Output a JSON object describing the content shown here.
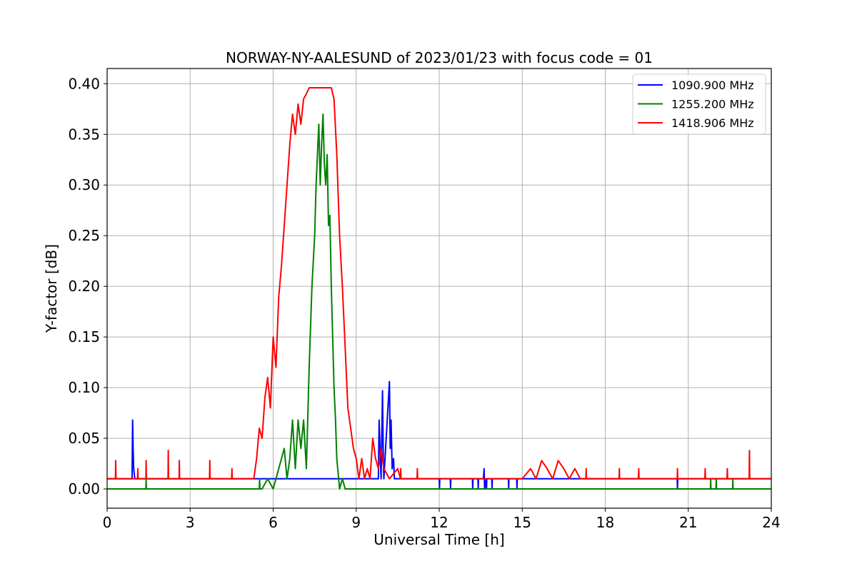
{
  "chart_data": {
    "type": "line",
    "title": "NORWAY-NY-AALESUND of 2023/01/23 with focus code = 01",
    "xlabel": "Universal Time [h]",
    "ylabel": "Y-factor [dB]",
    "xlim": [
      0,
      24
    ],
    "ylim": [
      -0.019,
      0.415
    ],
    "xticks": [
      0,
      3,
      6,
      9,
      12,
      15,
      18,
      21,
      24
    ],
    "xtick_labels": [
      "0",
      "3",
      "6",
      "9",
      "12",
      "15",
      "18",
      "21",
      "24"
    ],
    "yticks": [
      0.0,
      0.05,
      0.1,
      0.15,
      0.2,
      0.25,
      0.3,
      0.35,
      0.4
    ],
    "ytick_labels": [
      "0.00",
      "0.05",
      "0.10",
      "0.15",
      "0.20",
      "0.25",
      "0.30",
      "0.35",
      "0.40"
    ],
    "grid": true,
    "legend_position": "top-right",
    "series": [
      {
        "name": "1090.900 MHz",
        "color": "#0000ff",
        "x": [
          0.0,
          0.9,
          0.92,
          0.94,
          0.96,
          1.0,
          5.0,
          9.8,
          9.83,
          9.86,
          9.9,
          9.95,
          9.98,
          10.0,
          10.2,
          10.23,
          10.26,
          10.3,
          10.35,
          10.38,
          10.4,
          12.0,
          12.01,
          12.02,
          12.4,
          12.41,
          12.42,
          13.2,
          13.21,
          13.22,
          13.4,
          13.41,
          13.42,
          13.6,
          13.62,
          13.64,
          13.7,
          13.71,
          13.72,
          13.9,
          13.91,
          13.92,
          14.5,
          14.51,
          14.52,
          14.8,
          14.81,
          14.82,
          20.6,
          20.61,
          20.62,
          24.0
        ],
        "y": [
          0.01,
          0.01,
          0.068,
          0.04,
          0.02,
          0.01,
          0.01,
          0.01,
          0.068,
          0.04,
          0.01,
          0.097,
          0.03,
          0.01,
          0.106,
          0.04,
          0.068,
          0.02,
          0.03,
          0.01,
          0.01,
          0.01,
          0.0,
          0.01,
          0.01,
          0.0,
          0.01,
          0.01,
          0.0,
          0.01,
          0.01,
          0.0,
          0.01,
          0.01,
          0.02,
          0.0,
          0.01,
          0.0,
          0.01,
          0.01,
          0.0,
          0.01,
          0.01,
          0.0,
          0.01,
          0.01,
          0.0,
          0.01,
          0.01,
          0.0,
          0.01,
          0.01
        ]
      },
      {
        "name": "1255.200 MHz",
        "color": "#008000",
        "x": [
          0.0,
          1.4,
          1.41,
          1.42,
          5.5,
          5.51,
          5.52,
          5.6,
          5.8,
          6.0,
          6.2,
          6.4,
          6.5,
          6.6,
          6.7,
          6.8,
          6.9,
          7.0,
          7.1,
          7.2,
          7.3,
          7.4,
          7.5,
          7.55,
          7.6,
          7.65,
          7.7,
          7.75,
          7.8,
          7.85,
          7.9,
          7.95,
          8.0,
          8.05,
          8.1,
          8.15,
          8.2,
          8.25,
          8.3,
          8.4,
          8.5,
          8.6,
          8.7,
          9.0,
          21.8,
          21.81,
          21.82,
          22.0,
          22.01,
          22.02,
          22.6,
          22.61,
          22.62,
          24.0
        ],
        "y": [
          0.0,
          0.0,
          0.01,
          0.0,
          0.0,
          0.01,
          0.0,
          0.0,
          0.01,
          0.0,
          0.02,
          0.04,
          0.01,
          0.03,
          0.068,
          0.02,
          0.068,
          0.04,
          0.068,
          0.02,
          0.12,
          0.2,
          0.25,
          0.3,
          0.33,
          0.36,
          0.3,
          0.34,
          0.37,
          0.32,
          0.3,
          0.33,
          0.26,
          0.27,
          0.2,
          0.15,
          0.1,
          0.07,
          0.03,
          0.0,
          0.01,
          0.0,
          0.0,
          0.0,
          0.0,
          0.01,
          0.0,
          0.0,
          0.01,
          0.0,
          0.0,
          0.01,
          0.0,
          0.0
        ]
      },
      {
        "name": "1418.906 MHz",
        "color": "#ff0000",
        "x": [
          0.0,
          0.3,
          0.31,
          0.32,
          1.1,
          1.11,
          1.12,
          1.4,
          1.41,
          1.42,
          2.2,
          2.21,
          2.22,
          2.6,
          2.61,
          2.62,
          3.7,
          3.71,
          3.72,
          4.5,
          4.51,
          4.52,
          5.3,
          5.4,
          5.5,
          5.6,
          5.7,
          5.8,
          5.9,
          6.0,
          6.1,
          6.2,
          6.3,
          6.4,
          6.5,
          6.6,
          6.7,
          6.8,
          6.9,
          7.0,
          7.1,
          7.2,
          7.3,
          7.4,
          7.5,
          7.6,
          7.7,
          7.8,
          7.9,
          8.0,
          8.1,
          8.2,
          8.3,
          8.4,
          8.5,
          8.6,
          8.7,
          8.8,
          8.9,
          9.0,
          9.1,
          9.2,
          9.3,
          9.4,
          9.5,
          9.6,
          9.7,
          9.8,
          9.9,
          10.0,
          10.2,
          10.5,
          10.6,
          10.61,
          10.62,
          11.2,
          11.21,
          11.22,
          15.0,
          15.3,
          15.5,
          15.7,
          15.9,
          16.1,
          16.3,
          16.5,
          16.7,
          16.9,
          17.1,
          17.3,
          17.31,
          17.32,
          18.5,
          18.51,
          18.52,
          19.2,
          19.21,
          19.22,
          20.6,
          20.61,
          20.62,
          21.6,
          21.61,
          21.62,
          22.4,
          22.41,
          22.42,
          23.2,
          23.21,
          23.22,
          23.3,
          24.0
        ],
        "y": [
          0.01,
          0.01,
          0.028,
          0.01,
          0.01,
          0.02,
          0.01,
          0.01,
          0.028,
          0.01,
          0.01,
          0.038,
          0.01,
          0.01,
          0.028,
          0.01,
          0.01,
          0.028,
          0.01,
          0.01,
          0.02,
          0.01,
          0.01,
          0.03,
          0.06,
          0.05,
          0.09,
          0.11,
          0.08,
          0.15,
          0.12,
          0.19,
          0.22,
          0.26,
          0.3,
          0.34,
          0.37,
          0.35,
          0.38,
          0.36,
          0.385,
          0.39,
          0.396,
          0.396,
          0.396,
          0.396,
          0.396,
          0.396,
          0.396,
          0.396,
          0.396,
          0.385,
          0.33,
          0.25,
          0.2,
          0.14,
          0.08,
          0.06,
          0.04,
          0.03,
          0.01,
          0.03,
          0.01,
          0.02,
          0.01,
          0.05,
          0.03,
          0.02,
          0.04,
          0.02,
          0.01,
          0.02,
          0.01,
          0.02,
          0.01,
          0.01,
          0.02,
          0.01,
          0.01,
          0.02,
          0.01,
          0.028,
          0.02,
          0.01,
          0.028,
          0.02,
          0.01,
          0.02,
          0.01,
          0.01,
          0.02,
          0.01,
          0.01,
          0.02,
          0.01,
          0.01,
          0.02,
          0.01,
          0.01,
          0.02,
          0.01,
          0.01,
          0.02,
          0.01,
          0.01,
          0.02,
          0.01,
          0.01,
          0.038,
          0.01,
          0.01,
          0.01
        ]
      }
    ]
  }
}
